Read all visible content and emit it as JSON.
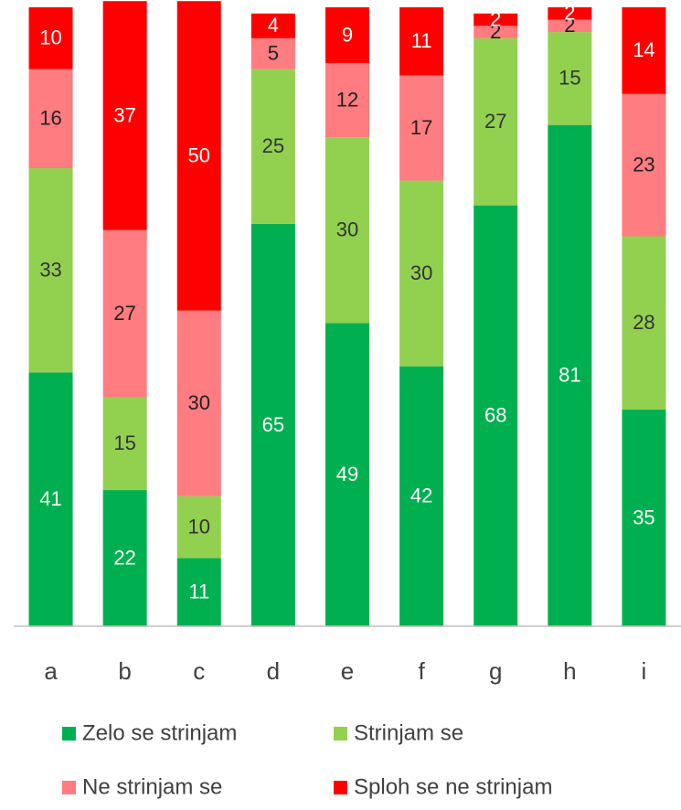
{
  "chart_data": {
    "type": "stacked_bar",
    "categories": [
      "a",
      "b",
      "c",
      "d",
      "e",
      "f",
      "g",
      "h",
      "i"
    ],
    "series": [
      {
        "name": "Zelo se strinjam",
        "color": "#00b050",
        "label_color": "#ffffff",
        "values": [
          41,
          22,
          11,
          65,
          49,
          42,
          68,
          81,
          35
        ]
      },
      {
        "name": "Strinjam se",
        "color": "#92d050",
        "label_color": "#333333",
        "values": [
          33,
          15,
          10,
          25,
          30,
          30,
          27,
          15,
          28
        ]
      },
      {
        "name": "Ne strinjam se",
        "color": "#ff7c80",
        "label_color": "#222222",
        "values": [
          16,
          27,
          30,
          5,
          12,
          17,
          2,
          2,
          23
        ]
      },
      {
        "name": "Sploh se ne strinjam",
        "color": "#ff0000",
        "label_color": "#ffffff",
        "values": [
          10,
          37,
          50,
          4,
          9,
          11,
          2,
          2,
          14
        ]
      }
    ],
    "ylim": [
      0,
      100
    ],
    "legend": "bottom"
  }
}
